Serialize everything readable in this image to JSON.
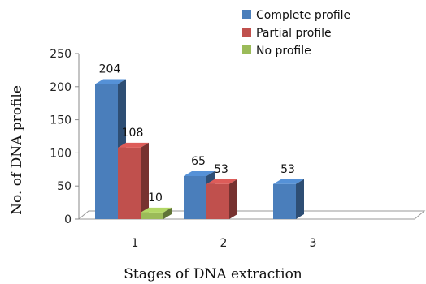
{
  "chart_data": {
    "type": "bar",
    "categories": [
      "1",
      "2",
      "3"
    ],
    "series": [
      {
        "name": "Complete profile",
        "values": [
          204,
          65,
          53
        ],
        "color": "#4a7ebb"
      },
      {
        "name": "Partial profile",
        "values": [
          108,
          53,
          null
        ],
        "color": "#c0504d"
      },
      {
        "name": "No profile",
        "values": [
          10,
          null,
          null
        ],
        "color": "#9bbb59"
      }
    ],
    "xlabel": "Stages of DNA extraction",
    "ylabel": "No. of DNA profile",
    "ylim": [
      0,
      250
    ],
    "yticks": [
      0,
      50,
      100,
      150,
      200,
      250
    ],
    "legend": "top-right",
    "style": "3d-bar"
  }
}
